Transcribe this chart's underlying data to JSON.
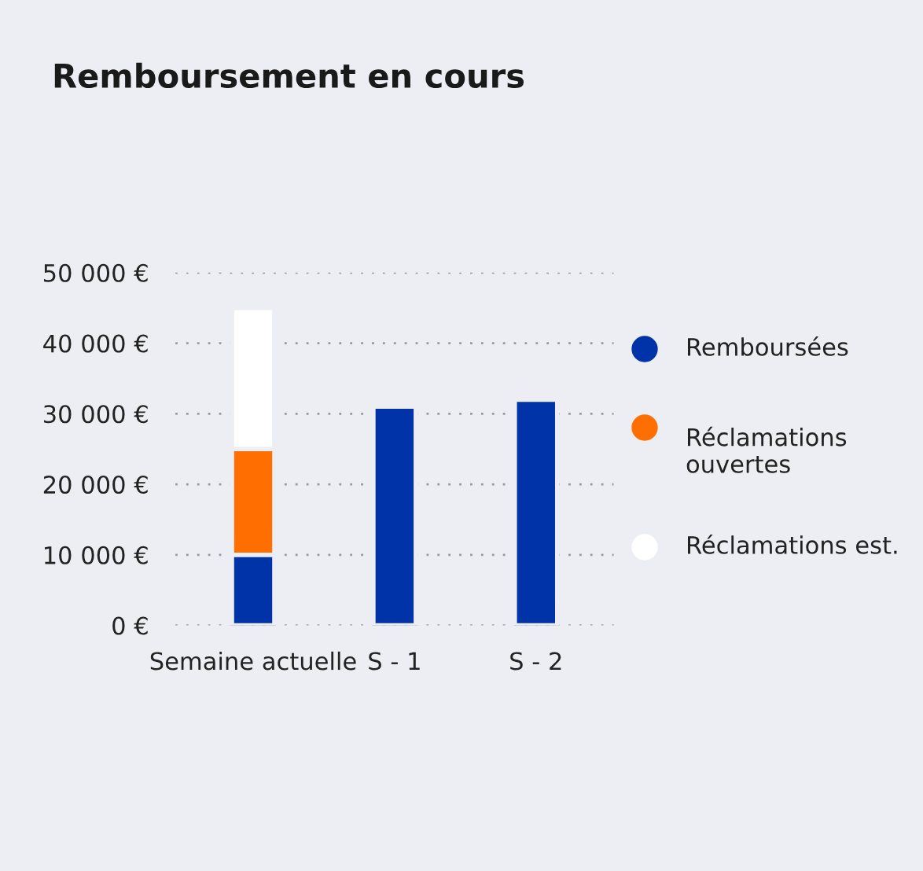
{
  "chart_data": {
    "type": "bar",
    "title": "Remboursement en cours",
    "stacked": true,
    "categories": [
      "Semaine actuelle",
      "S - 1",
      "S - 2"
    ],
    "series": [
      {
        "name": "Remboursées",
        "color": "#0033a8",
        "values": [
          10000,
          31000,
          32000
        ]
      },
      {
        "name": "Réclamations ouvertes",
        "color": "#ff6e00",
        "values": [
          15000,
          null,
          null
        ]
      },
      {
        "name": "Réclamations est.",
        "color": "#ffffff",
        "values": [
          20000,
          null,
          null
        ]
      }
    ],
    "ylim": [
      0,
      50000
    ],
    "yticks": [
      {
        "value": 0,
        "label": "0 €"
      },
      {
        "value": 10000,
        "label": "10 000 €"
      },
      {
        "value": 20000,
        "label": "20 000 €"
      },
      {
        "value": 30000,
        "label": "30 000 €"
      },
      {
        "value": 40000,
        "label": "40 000 €"
      },
      {
        "value": 50000,
        "label": "50 000 €"
      }
    ],
    "grid": "y",
    "legend": "right"
  }
}
